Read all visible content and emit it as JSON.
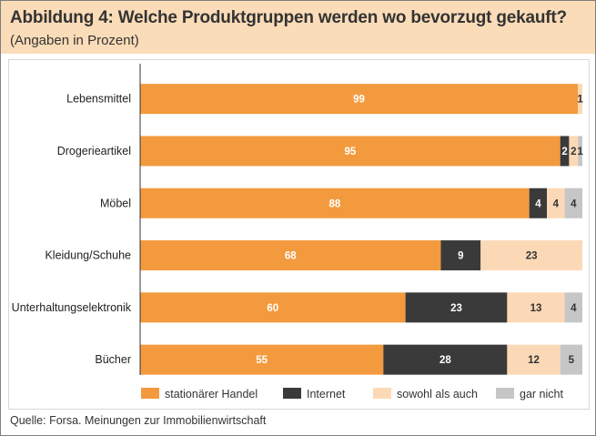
{
  "header": {
    "title": "Abbildung 4: Welche Produktgruppen werden wo bevorzugt gekauft?",
    "subtitle": "(Angaben in Prozent)"
  },
  "footer": {
    "source": "Quelle: Forsa. Meinungen zur Immobilienwirtschaft"
  },
  "colors": {
    "header_bg": "#fbdcb8",
    "stationaer": "#f39a3e",
    "internet": "#3a3a3a",
    "sowohl": "#fcd9b6",
    "gar_nicht": "#c6c6c6"
  },
  "chart_data": {
    "type": "bar",
    "orientation": "horizontal",
    "stacked": true,
    "title": "Abbildung 4: Welche Produktgruppen werden wo bevorzugt gekauft?",
    "subtitle": "(Angaben in Prozent)",
    "xlim": [
      0,
      100
    ],
    "grid": false,
    "legend_position": "bottom",
    "categories": [
      "Lebensmittel",
      "Drogerieartikel",
      "Möbel",
      "Kleidung/Schuhe",
      "Unterhaltungselektronik",
      "Bücher"
    ],
    "series": [
      {
        "name": "stationärer Handel",
        "color": "#f39a3e",
        "values": [
          99,
          95,
          88,
          68,
          60,
          55
        ]
      },
      {
        "name": "Internet",
        "color": "#3a3a3a",
        "values": [
          0,
          2,
          4,
          9,
          23,
          28
        ]
      },
      {
        "name": "sowohl als auch",
        "color": "#fcd9b6",
        "values": [
          1,
          2,
          4,
          23,
          13,
          12
        ]
      },
      {
        "name": "gar nicht",
        "color": "#c6c6c6",
        "values": [
          0,
          1,
          4,
          0,
          4,
          5
        ]
      }
    ],
    "data_labels": [
      [
        "99",
        "",
        "1",
        ""
      ],
      [
        "95",
        "2",
        "2",
        "1"
      ],
      [
        "88",
        "4",
        "4",
        "4"
      ],
      [
        "68",
        "9",
        "23",
        ""
      ],
      [
        "60",
        "23",
        "13",
        "4"
      ],
      [
        "55",
        "28",
        "12",
        "5"
      ]
    ]
  }
}
